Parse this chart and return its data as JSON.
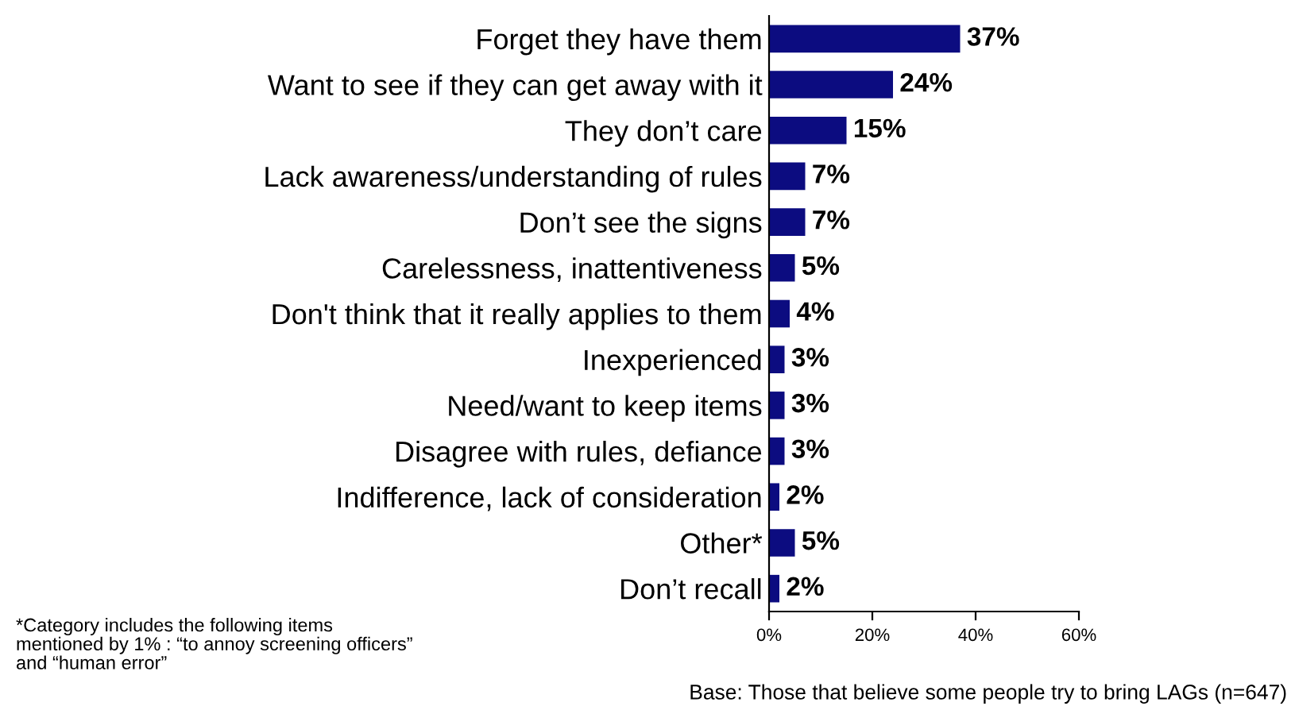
{
  "chart_data": {
    "type": "bar",
    "orientation": "horizontal",
    "categories": [
      "Forget they have them",
      "Want to see if they can get away with it",
      "They don’t care",
      "Lack awareness/understanding of rules",
      "Don’t see the signs",
      "Carelessness, inattentiveness",
      "Don't think that it really applies to them",
      "Inexperienced",
      "Need/want to keep items",
      "Disagree with rules, defiance",
      "Indifference, lack of consideration",
      "Other*",
      "Don’t recall"
    ],
    "values": [
      37,
      24,
      15,
      7,
      7,
      5,
      4,
      3,
      3,
      3,
      2,
      5,
      2
    ],
    "color": "#0c0c80",
    "xlim": [
      0,
      60
    ],
    "xticks": [
      {
        "value": 0,
        "label": "0%"
      },
      {
        "value": 20,
        "label": "20%"
      },
      {
        "value": 40,
        "label": "40%"
      },
      {
        "value": 60,
        "label": "60%"
      }
    ],
    "value_labels": [
      "37%",
      "24%",
      "15%",
      "7%",
      "7%",
      "5%",
      "4%",
      "3%",
      "3%",
      "3%",
      "2%",
      "5%",
      "2%"
    ],
    "grid": false,
    "legend": false,
    "annotations": [
      "*Category includes the following items\nmentioned by 1% : “to annoy screening officers”\nand “human error”",
      "Base: Those that believe some people try to bring LAGs (n=647)"
    ]
  }
}
